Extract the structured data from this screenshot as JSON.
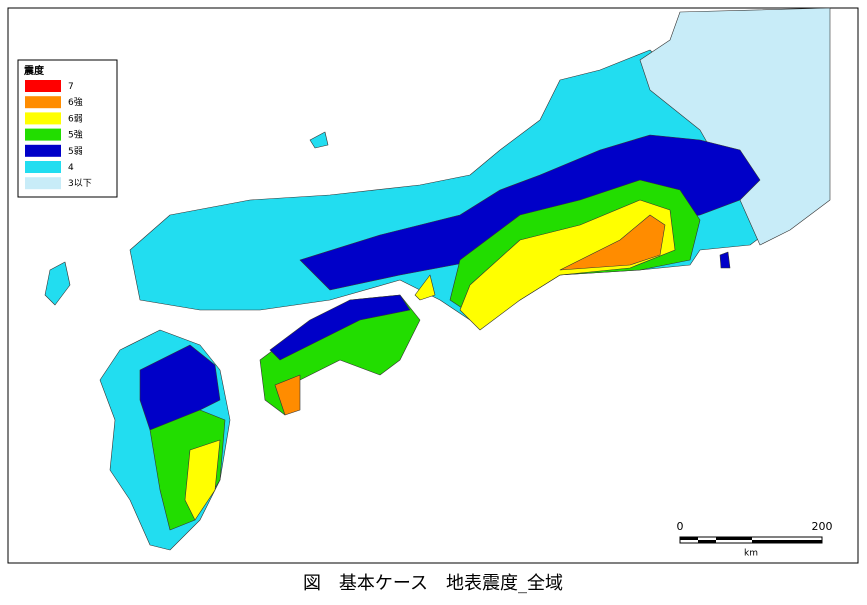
{
  "legend": {
    "title": "震度",
    "items": [
      {
        "label": "7",
        "color": "#ff0000"
      },
      {
        "label": "6強",
        "color": "#ff8c00"
      },
      {
        "label": "6弱",
        "color": "#ffff00"
      },
      {
        "label": "5強",
        "color": "#22dd00"
      },
      {
        "label": "5弱",
        "color": "#0000c8"
      },
      {
        "label": "4",
        "color": "#22ddf0"
      },
      {
        "label": "3以下",
        "color": "#c8ecf8"
      }
    ]
  },
  "scale_bar": {
    "start": "0",
    "end": "200",
    "unit": "km"
  },
  "caption": "図　基本ケース　地表震度_全域"
}
